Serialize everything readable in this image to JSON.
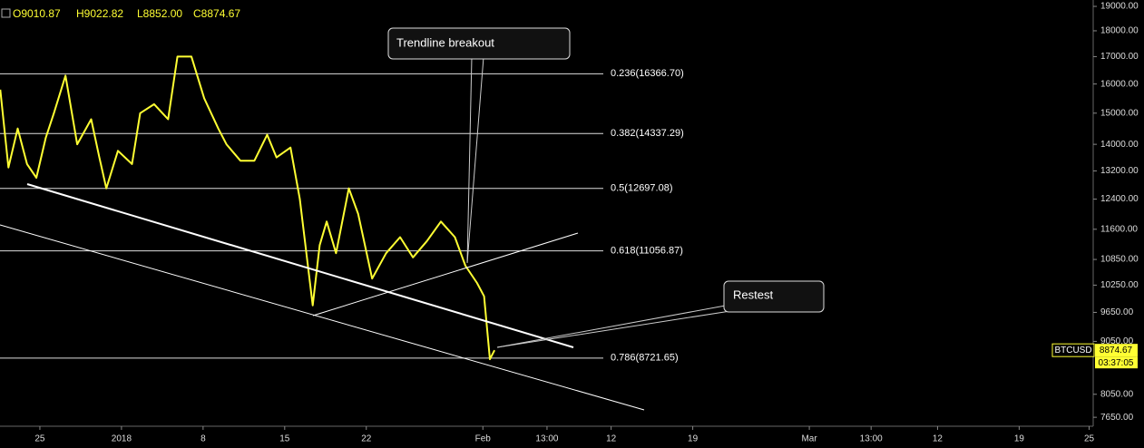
{
  "chart_data": {
    "type": "line",
    "header": [
      "O9010.87",
      "H9022.82",
      "L8852.00",
      "C8874.67"
    ],
    "log_scale": true,
    "grid": false,
    "xlim": [
      -3.42,
      90.35
    ],
    "ylim": [
      7500,
      19270
    ],
    "xticks": [
      {
        "value": 0,
        "label": "25"
      },
      {
        "value": 7,
        "label": "2018"
      },
      {
        "value": 14,
        "label": "8"
      },
      {
        "value": 21,
        "label": "15"
      },
      {
        "value": 28,
        "label": "22"
      },
      {
        "value": 38,
        "label": "Feb"
      },
      {
        "value": 43.5,
        "label": "13:00"
      },
      {
        "value": 49,
        "label": "12"
      },
      {
        "value": 56,
        "label": "19"
      },
      {
        "value": 66,
        "label": "Mar"
      },
      {
        "value": 71.3,
        "label": "13:00"
      },
      {
        "value": 77,
        "label": "12"
      },
      {
        "value": 84,
        "label": "19"
      },
      {
        "value": 90,
        "label": "25"
      }
    ],
    "yticks": [
      {
        "value": 19000,
        "label": "19000.00"
      },
      {
        "value": 18000,
        "label": "18000.00"
      },
      {
        "value": 17000,
        "label": "17000.00"
      },
      {
        "value": 16000,
        "label": "16000.00"
      },
      {
        "value": 15000,
        "label": "15000.00"
      },
      {
        "value": 14000,
        "label": "14000.00"
      },
      {
        "value": 13200,
        "label": "13200.00"
      },
      {
        "value": 12400,
        "label": "12400.00"
      },
      {
        "value": 11600,
        "label": "11600.00"
      },
      {
        "value": 10850,
        "label": "10850.00"
      },
      {
        "value": 10250,
        "label": "10250.00"
      },
      {
        "value": 9650,
        "label": "9650.00"
      },
      {
        "value": 9050,
        "label": "9050.00"
      },
      {
        "value": 8050,
        "label": "8050.00"
      },
      {
        "value": 7650,
        "label": "7650.00"
      }
    ],
    "series": [
      {
        "name": "BTCUSD",
        "color": "#ffff33",
        "x": [
          -3.4,
          -2.7,
          -1.9,
          -1.1,
          -0.3,
          0.5,
          1.2,
          2.2,
          3.2,
          4.4,
          5.1,
          5.7,
          6.7,
          7.9,
          8.6,
          9.8,
          11,
          11.8,
          13,
          14.1,
          15.3,
          16,
          17.2,
          18.4,
          19.5,
          20.3,
          21.5,
          22.3,
          23.4,
          24,
          24.6,
          25.4,
          26.5,
          27.3,
          28.5,
          29.7,
          30.9,
          32,
          33.2,
          34.4,
          35.6,
          36.5,
          37.5,
          38.1,
          38.6,
          39
        ],
        "values": [
          15800,
          13300,
          14500,
          13400,
          13000,
          14200,
          15000,
          16300,
          14000,
          14800,
          13600,
          12700,
          13800,
          13400,
          15000,
          15300,
          14800,
          17000,
          17000,
          15500,
          14500,
          14000,
          13500,
          13500,
          14300,
          13600,
          13900,
          12400,
          9800,
          11200,
          11800,
          11000,
          12700,
          12000,
          10400,
          11000,
          11400,
          10900,
          11300,
          11800,
          11400,
          10700,
          10300,
          10000,
          8700,
          8875
        ]
      }
    ],
    "fib_levels": [
      {
        "value": 16366.7,
        "label": "0.236(16366.70)"
      },
      {
        "value": 14337.29,
        "label": "0.382(14337.29)"
      },
      {
        "value": 12697.08,
        "label": "0.5(12697.08)"
      },
      {
        "value": 11056.87,
        "label": "0.618(11056.87)"
      },
      {
        "value": 8721.65,
        "label": "0.786(8721.65)"
      }
    ],
    "annotations": [
      "Trendline breakout",
      "Restest"
    ],
    "price_tag": {
      "symbol": "BTCUSD",
      "price": 8874.67,
      "countdown": "03:37:05"
    }
  }
}
